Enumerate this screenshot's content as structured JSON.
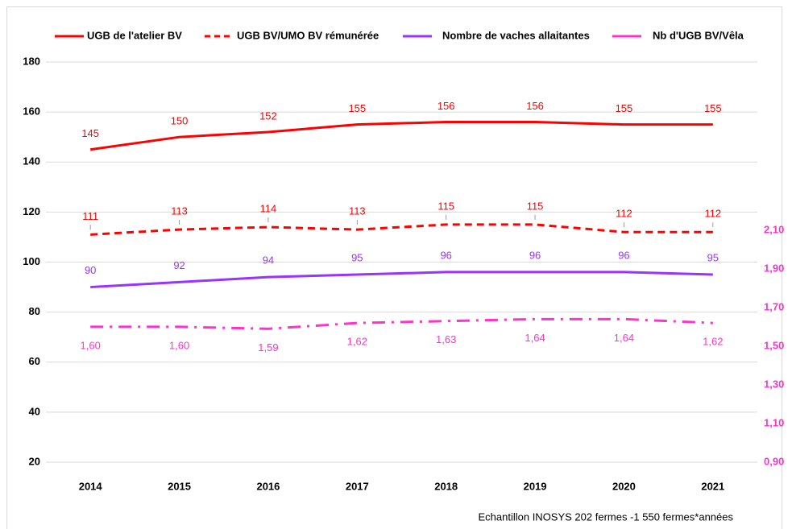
{
  "chart_data": {
    "type": "line",
    "categories": [
      "2014",
      "2015",
      "2016",
      "2017",
      "2018",
      "2019",
      "2020",
      "2021"
    ],
    "series": [
      {
        "name": "UGB de l'atelier BV",
        "color": "#ff0000",
        "style": "solid",
        "values": [
          145,
          150,
          152,
          155,
          156,
          156,
          155,
          155
        ]
      },
      {
        "name": "UGB BV/UMO BV rémunérée",
        "color": "#ff0000",
        "style": "dashed",
        "values": [
          111,
          113,
          114,
          113,
          115,
          115,
          112,
          112
        ]
      },
      {
        "name": "Nombre de vaches allaitantes",
        "color": "#9933ff",
        "style": "solid",
        "values": [
          90,
          92,
          94,
          95,
          96,
          96,
          96,
          95
        ]
      },
      {
        "name": "Nb d'UGB BV/Vêla",
        "color": "#ff33cc",
        "style": "dashdot",
        "axis": "y2",
        "values": [
          1.6,
          1.6,
          1.59,
          1.62,
          1.63,
          1.64,
          1.64,
          1.62
        ],
        "value_labels": [
          "1,60",
          "1,60",
          "1,59",
          "1,62",
          "1,63",
          "1,64",
          "1,64",
          "1,62"
        ]
      }
    ],
    "ylim": [
      20,
      180
    ],
    "yticks": [
      20,
      40,
      60,
      80,
      100,
      120,
      140,
      160,
      180
    ],
    "y2lim": [
      0.9,
      2.97
    ],
    "y2ticks": [
      {
        "value": 0.9,
        "label": "0,90"
      },
      {
        "value": 1.1,
        "label": "1,10"
      },
      {
        "value": 1.3,
        "label": "1,30"
      },
      {
        "value": 1.5,
        "label": "1,50"
      },
      {
        "value": 1.7,
        "label": "1,70"
      },
      {
        "value": 1.9,
        "label": "1,90"
      },
      {
        "value": 2.1,
        "label": "2,10"
      }
    ],
    "y2_color": "#ff33cc",
    "footnote": "Echantillon INOSYS 202 fermes -1 550 fermes*années"
  }
}
